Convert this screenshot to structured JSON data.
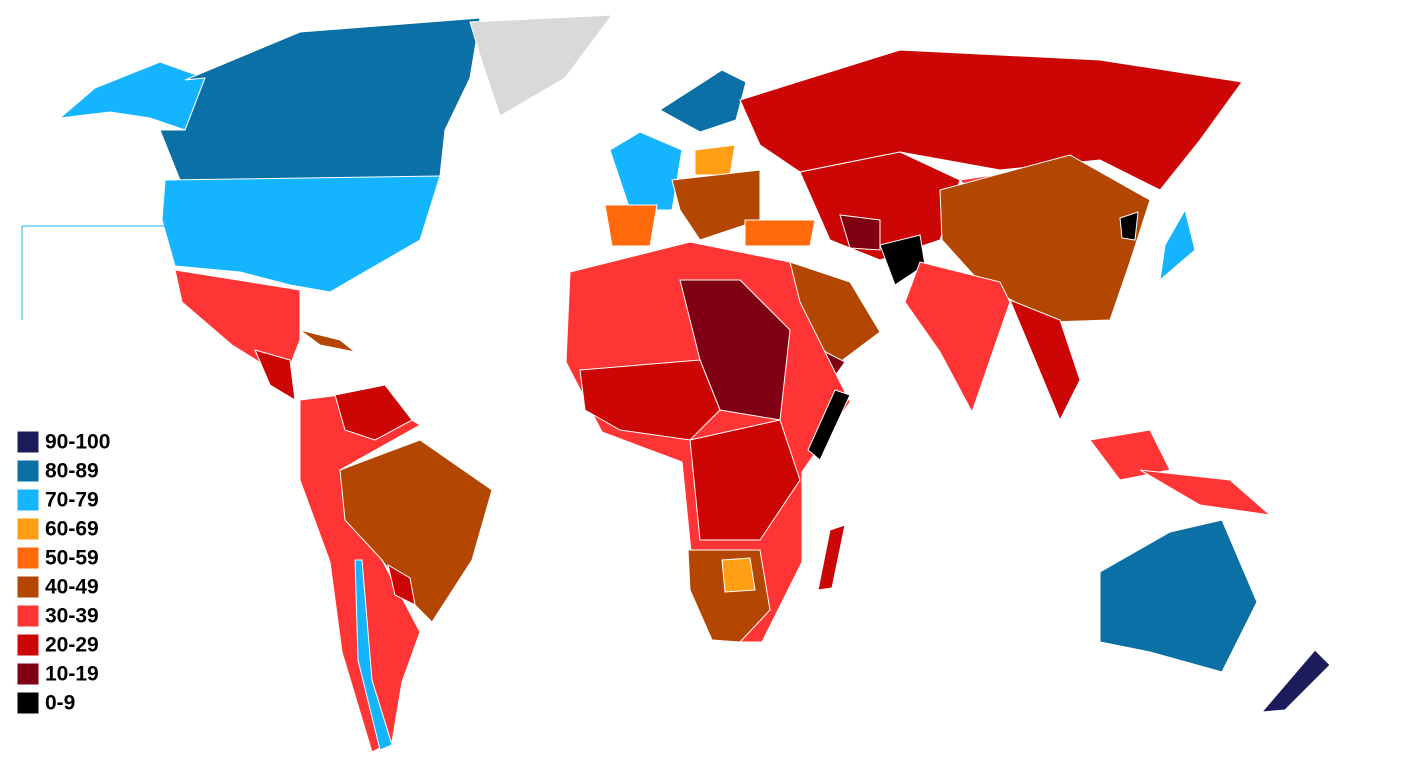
{
  "legend": {
    "items": [
      {
        "label": "90-100",
        "color": "#1c1c5c"
      },
      {
        "label": "80-89",
        "color": "#0a70a6"
      },
      {
        "label": "70-79",
        "color": "#14b4ff"
      },
      {
        "label": "60-69",
        "color": "#ff9f14"
      },
      {
        "label": "50-59",
        "color": "#ff6a0c"
      },
      {
        "label": "40-49",
        "color": "#b34600"
      },
      {
        "label": "30-39",
        "color": "#ff3535"
      },
      {
        "label": "20-29",
        "color": "#cc0505"
      },
      {
        "label": "10-19",
        "color": "#7f0012"
      },
      {
        "label": "0-9",
        "color": "#000000"
      }
    ]
  }
}
